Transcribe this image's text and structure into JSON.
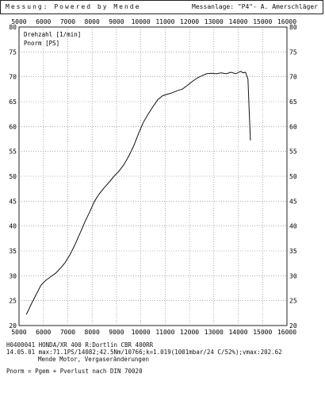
{
  "header": {
    "left": "Messung:  Powered by Mende",
    "right": "Messanlage: \"P4\"- A. Amerschläger"
  },
  "footer": {
    "line1": "H0400041  HONDA/XR  400 R:Dortlin CBR 400RR",
    "line2": "14.05.01   max:71.1PS/14082;42.5Nm/10766;k=1.019(1001mbar/24 C/52%);vmax:202.62",
    "line3": "Mende Motor, Vergaseränderungen",
    "line4": "Pnorm = Pgem + Pverlust nach DIN 70020"
  },
  "chart_data": {
    "type": "line",
    "xlim": [
      5000,
      16000
    ],
    "ylim": [
      20,
      80
    ],
    "x_ticks": [
      5000,
      6000,
      7000,
      8000,
      9000,
      10000,
      11000,
      12000,
      13000,
      14000,
      15000,
      16000
    ],
    "y_ticks": [
      20,
      25,
      30,
      35,
      40,
      45,
      50,
      55,
      60,
      65,
      70,
      75,
      80
    ],
    "grid": "dotted",
    "legend": [
      "Drehzahl [1/min]",
      "Pnorm [PS]"
    ],
    "series": [
      {
        "name": "Pnorm [PS]",
        "x": [
          5300,
          5500,
          5700,
          5900,
          6100,
          6300,
          6500,
          6700,
          6900,
          7100,
          7300,
          7500,
          7700,
          7900,
          8100,
          8300,
          8500,
          8700,
          8900,
          9100,
          9300,
          9500,
          9700,
          9900,
          10100,
          10300,
          10500,
          10700,
          10900,
          11100,
          11300,
          11500,
          11700,
          11900,
          12100,
          12300,
          12500,
          12700,
          12900,
          13100,
          13300,
          13500,
          13700,
          13900,
          14100,
          14200,
          14300,
          14400,
          14450,
          14500
        ],
        "y": [
          22.2,
          24.3,
          26.2,
          28.1,
          29.1,
          29.8,
          30.5,
          31.5,
          32.7,
          34.3,
          36.3,
          38.5,
          40.8,
          42.8,
          45.0,
          46.5,
          47.7,
          48.8,
          50.0,
          51.0,
          52.3,
          54.0,
          56.0,
          58.5,
          60.8,
          62.5,
          64.0,
          65.4,
          66.2,
          66.5,
          66.8,
          67.2,
          67.5,
          68.2,
          69.0,
          69.7,
          70.2,
          70.6,
          70.7,
          70.6,
          70.8,
          70.6,
          70.9,
          70.6,
          71.1,
          70.8,
          70.9,
          69.5,
          63.0,
          57.2
        ]
      }
    ]
  }
}
